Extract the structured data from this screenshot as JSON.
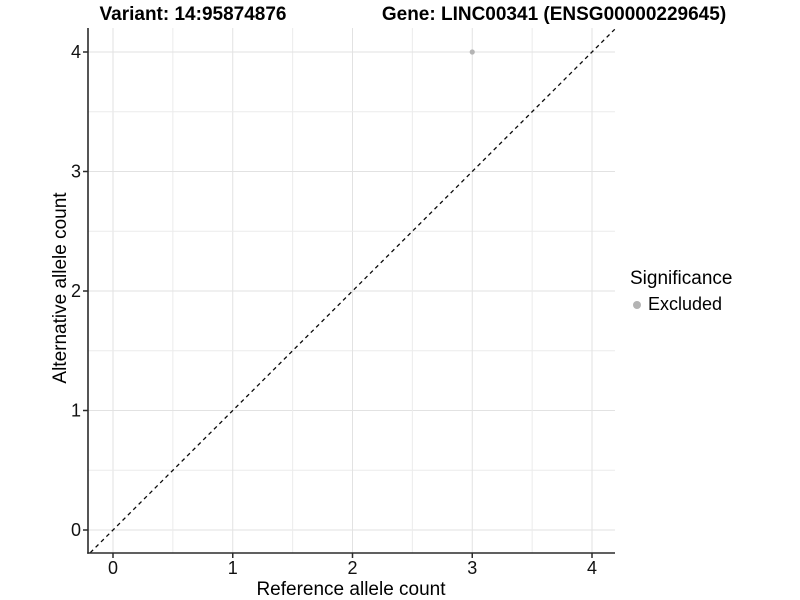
{
  "chart_data": {
    "type": "scatter",
    "title_left": "Variant: 14:95874876",
    "title_right": "Gene: LINC00341 (ENSG00000229645)",
    "xlabel": "Reference allele count",
    "ylabel": "Alternative allele count",
    "xticks": [
      0,
      1,
      2,
      3,
      4
    ],
    "yticks": [
      0,
      1,
      2,
      3,
      4
    ],
    "xlim": [
      -0.21,
      4.19
    ],
    "ylim": [
      -0.19,
      4.2
    ],
    "grid": true,
    "grid_step": 0.5,
    "identity_line": {
      "style": "dashed",
      "color": "#0a0a0a",
      "from": [
        -0.19,
        -0.19
      ],
      "to": [
        4.19,
        4.19
      ]
    },
    "series": [
      {
        "name": "Excluded",
        "color": "#b4b4b4",
        "points": [
          {
            "x": 3,
            "y": 4
          }
        ]
      }
    ],
    "legend": {
      "title": "Significance",
      "position": "right",
      "items": [
        {
          "label": "Excluded",
          "color": "#b4b4b4"
        }
      ]
    }
  },
  "colors": {
    "background": "#ffffff",
    "axis_line": "#2b2b2b",
    "tick_text": "#111111",
    "grid_major": "#e2e2e2",
    "grid_minor": "#ebebeb"
  }
}
